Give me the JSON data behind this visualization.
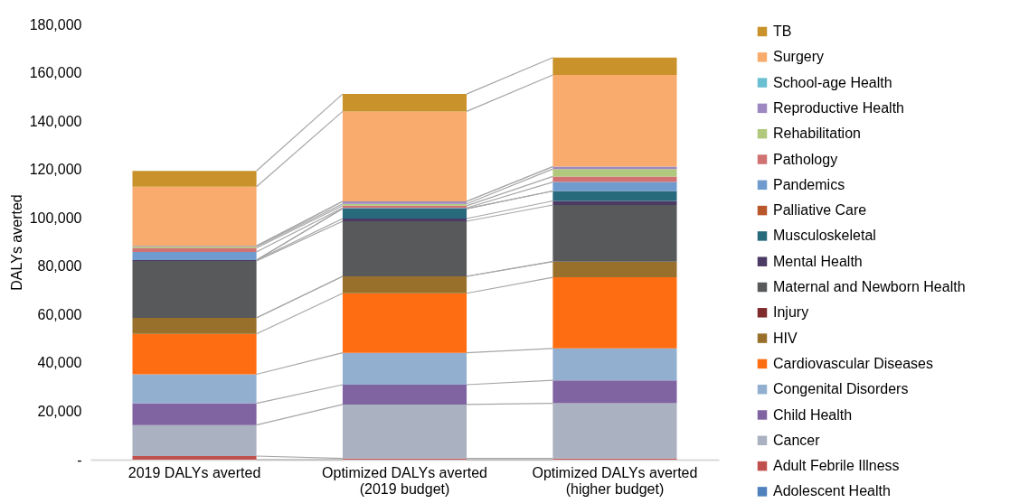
{
  "chart_data": {
    "type": "bar",
    "stacked": true,
    "ylabel": "DALYs averted",
    "categories": [
      "2019 DALYs averted",
      "Optimized DALYs averted (2019 budget)",
      "Optimized DALYs averted (higher budget)"
    ],
    "ylim": [
      0,
      180000
    ],
    "yticks": [
      {
        "value": 0,
        "label": "-"
      },
      {
        "value": 20000,
        "label": "20,000"
      },
      {
        "value": 40000,
        "label": "40,000"
      },
      {
        "value": 60000,
        "label": "60,000"
      },
      {
        "value": 80000,
        "label": "80,000"
      },
      {
        "value": 100000,
        "label": "100,000"
      },
      {
        "value": 120000,
        "label": "120,000"
      },
      {
        "value": 140000,
        "label": "140,000"
      },
      {
        "value": 160000,
        "label": "160,000"
      },
      {
        "value": 180000,
        "label": "180,000"
      }
    ],
    "grid": false,
    "legend": "right",
    "series": [
      {
        "name": "Adolescent Health",
        "color": "#4f81bd",
        "values": [
          0,
          0,
          0
        ]
      },
      {
        "name": "Adult Febrile Illness",
        "color": "#c0504d",
        "values": [
          1500,
          500,
          500
        ]
      },
      {
        "name": "Cancer",
        "color": "#aab1c0",
        "values": [
          12800,
          22300,
          22800
        ]
      },
      {
        "name": "Child Health",
        "color": "#8064a2",
        "values": [
          9000,
          8200,
          9500
        ]
      },
      {
        "name": "Congenital Disorders",
        "color": "#93afd0",
        "values": [
          12000,
          13200,
          13200
        ]
      },
      {
        "name": "Cardiovascular Diseases",
        "color": "#ff6d13",
        "values": [
          16700,
          24600,
          29400
        ]
      },
      {
        "name": "HIV",
        "color": "#99702b",
        "values": [
          6600,
          7000,
          6500
        ]
      },
      {
        "name": "Injury",
        "color": "#7f2a2b",
        "values": [
          0,
          0,
          0
        ]
      },
      {
        "name": "Maternal and Newborn Health",
        "color": "#58595b",
        "values": [
          23600,
          22800,
          23400
        ]
      },
      {
        "name": "Mental Health",
        "color": "#4b3a63",
        "values": [
          300,
          1100,
          1700
        ]
      },
      {
        "name": "Musculoskeletal",
        "color": "#276a7c",
        "values": [
          0,
          4100,
          4100
        ]
      },
      {
        "name": "Palliative Care",
        "color": "#b8572a",
        "values": [
          0,
          0,
          0
        ]
      },
      {
        "name": "Pandemics",
        "color": "#6f9bcf",
        "values": [
          3400,
          300,
          3700
        ]
      },
      {
        "name": "Pathology",
        "color": "#d07272",
        "values": [
          1700,
          900,
          2300
        ]
      },
      {
        "name": "Rehabilitation",
        "color": "#b0c97c",
        "values": [
          500,
          800,
          3100
        ]
      },
      {
        "name": "Reproductive Health",
        "color": "#9d88c2",
        "values": [
          300,
          1000,
          1000
        ]
      },
      {
        "name": "School-age Health",
        "color": "#6bbfd2",
        "values": [
          0,
          0,
          0
        ]
      },
      {
        "name": "Surgery",
        "color": "#f8ab6c",
        "values": [
          24500,
          37200,
          37900
        ]
      },
      {
        "name": "TB",
        "color": "#c9922a",
        "values": [
          6500,
          7200,
          7200
        ]
      }
    ]
  }
}
